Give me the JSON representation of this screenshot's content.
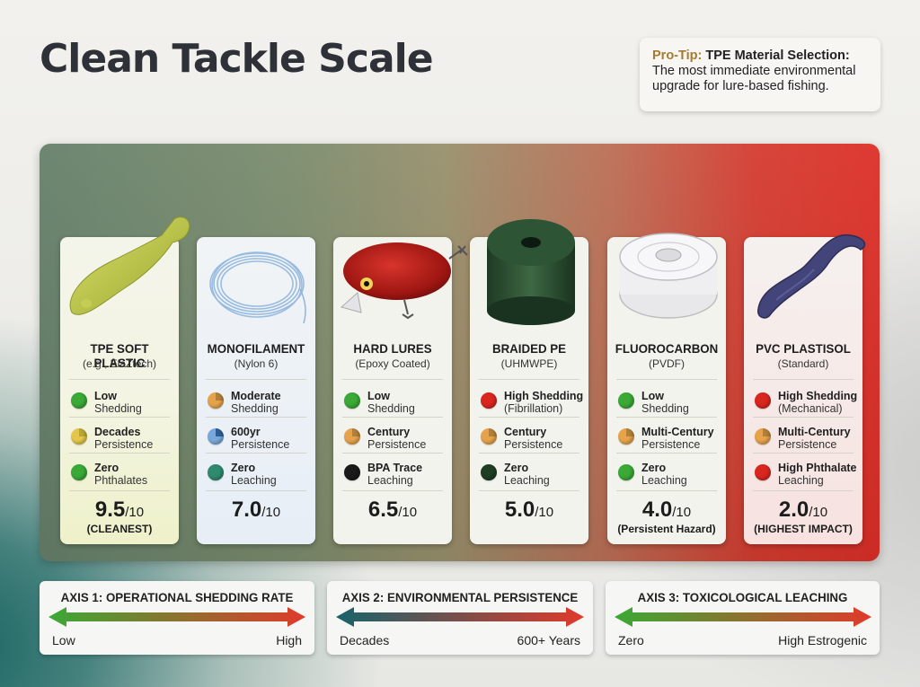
{
  "title": "Clean Tackle Scale",
  "protip": {
    "prefix": "Pro-Tip:",
    "heading": "TPE Material Selection:",
    "body": "The most immediate environmental upgrade for lure-based fishing."
  },
  "colors": {
    "green": "#3aa935",
    "dark_green": "#1f3d25",
    "red": "#d9261f",
    "black": "#1a1a1a",
    "teal": "#2f8a70",
    "orange": "#e7a34b",
    "blue_pie": "#4f8fd0"
  },
  "cards": [
    {
      "icon": "tpe-soft-plastic-shad-icon",
      "name": "TPE SOFT PLASTIC",
      "sub": "(e.g., ElaZtech)",
      "metrics": [
        {
          "icon": "green-dot-icon",
          "l1": "Low",
          "l2": "Shedding"
        },
        {
          "icon": "yellow-pie-icon",
          "l1": "Decades",
          "l2": "Persistence"
        },
        {
          "icon": "green-dot-icon",
          "l1": "Zero",
          "l2": "Phthalates"
        }
      ],
      "score": "9.5",
      "denom": "/10",
      "verdict": "(CLEANEST)"
    },
    {
      "icon": "monofilament-coil-icon",
      "name": "MONOFILAMENT",
      "sub": "(Nylon 6)",
      "metrics": [
        {
          "icon": "orange-pie-icon",
          "l1": "Moderate",
          "l2": "Shedding"
        },
        {
          "icon": "blue-pie-icon",
          "l1": "600yr",
          "l2": "Persistence"
        },
        {
          "icon": "teal-dot-icon",
          "l1": "Zero",
          "l2": "Leaching"
        }
      ],
      "score": "7.0",
      "denom": "/10",
      "verdict": ""
    },
    {
      "icon": "crankbait-lure-icon",
      "name": "HARD LURES",
      "sub": "(Epoxy Coated)",
      "metrics": [
        {
          "icon": "green-dot-icon",
          "l1": "Low",
          "l2": "Shedding"
        },
        {
          "icon": "orange-pie-icon",
          "l1": "Century",
          "l2": "Persistence"
        },
        {
          "icon": "black-dot-icon",
          "l1": "BPA Trace",
          "l2": "Leaching"
        }
      ],
      "score": "6.5",
      "denom": "/10",
      "verdict": ""
    },
    {
      "icon": "braided-line-spool-icon",
      "name": "BRAIDED PE",
      "sub": "(UHMWPE)",
      "metrics": [
        {
          "icon": "red-dot-icon",
          "l1": "High Shedding",
          "l2": "(Fibrillation)"
        },
        {
          "icon": "orange-pie-icon",
          "l1": "Century",
          "l2": "Persistence"
        },
        {
          "icon": "dark-green-dot-icon",
          "l1": "Zero",
          "l2": "Leaching"
        }
      ],
      "score": "5.0",
      "denom": "/10",
      "verdict": ""
    },
    {
      "icon": "fluorocarbon-spool-icon",
      "name": "FLUOROCARBON",
      "sub": "(PVDF)",
      "metrics": [
        {
          "icon": "green-dot-icon",
          "l1": "Low",
          "l2": "Shedding"
        },
        {
          "icon": "orange-pie-icon",
          "l1": "Multi-Century",
          "l2": "Persistence"
        },
        {
          "icon": "green-dot-icon",
          "l1": "Zero",
          "l2": "Leaching"
        }
      ],
      "score": "4.0",
      "denom": "/10",
      "verdict": "(Persistent Hazard)"
    },
    {
      "icon": "pvc-worm-icon",
      "name": "PVC PLASTISOL",
      "sub": "(Standard)",
      "metrics": [
        {
          "icon": "red-dot-icon",
          "l1": "High Shedding",
          "l2": "(Mechanical)"
        },
        {
          "icon": "orange-pie-icon",
          "l1": "Multi-Century",
          "l2": "Persistence"
        },
        {
          "icon": "red-dot-icon",
          "l1": "High Phthalate",
          "l2": "Leaching"
        }
      ],
      "score": "2.0",
      "denom": "/10",
      "verdict": "(HIGHEST IMPACT)"
    }
  ],
  "axes": [
    {
      "title": "AXIS 1: OPERATIONAL SHEDDING RATE",
      "low": "Low",
      "high": "High",
      "from": "#3aa935",
      "to": "#e03a2a"
    },
    {
      "title": "AXIS 2: ENVIRONMENTAL PERSISTENCE",
      "low": "Decades",
      "high": "600+ Years",
      "from": "#17636a",
      "to": "#e03a2a"
    },
    {
      "title": "AXIS 3: TOXICOLOGICAL LEACHING",
      "low": "Zero",
      "high": "High Estrogenic",
      "from": "#3aa935",
      "to": "#e03a2a"
    }
  ]
}
